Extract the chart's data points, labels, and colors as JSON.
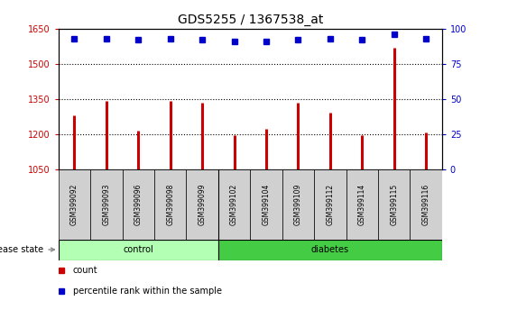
{
  "title": "GDS5255 / 1367538_at",
  "categories": [
    "GSM399092",
    "GSM399093",
    "GSM399096",
    "GSM399098",
    "GSM399099",
    "GSM399102",
    "GSM399104",
    "GSM399109",
    "GSM399112",
    "GSM399114",
    "GSM399115",
    "GSM399116"
  ],
  "bar_values": [
    1280,
    1340,
    1215,
    1343,
    1335,
    1193,
    1220,
    1335,
    1290,
    1193,
    1570,
    1208
  ],
  "percentile_values": [
    93,
    93,
    92,
    93,
    92,
    91,
    91,
    92,
    93,
    92,
    96,
    93
  ],
  "bar_color": "#cc0000",
  "dot_color": "#0000cc",
  "ylim_left": [
    1050,
    1650
  ],
  "ylim_right": [
    0,
    100
  ],
  "yticks_left": [
    1050,
    1200,
    1350,
    1500,
    1650
  ],
  "yticks_right": [
    0,
    25,
    50,
    75,
    100
  ],
  "grid_lines": [
    1200,
    1350,
    1500
  ],
  "control_count": 5,
  "diabetes_count": 7,
  "control_label": "control",
  "diabetes_label": "diabetes",
  "disease_state_label": "disease state",
  "legend_count_label": "count",
  "legend_pct_label": "percentile rank within the sample",
  "control_color": "#b3ffb3",
  "diabetes_color": "#44cc44",
  "sample_bg_color": "#d0d0d0",
  "title_fontsize": 10
}
